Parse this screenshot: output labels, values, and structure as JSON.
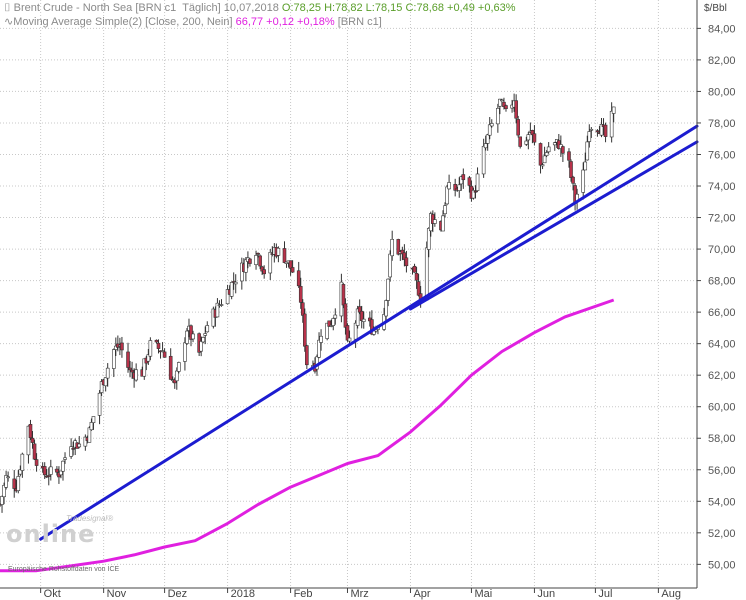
{
  "legend": {
    "line1_name": "Brent Crude - North Sea [BRN c1  Täglich]",
    "line1_date": "10,07,2018",
    "line1_ohl": "O:78,25 H:78,82 L:78,15",
    "line1_close": "C:78,68 +0,49 +0,63%",
    "line2_name": "Moving Average Simple(2) [Close, 200, Nein]",
    "line2_value": "66,77 +0,12 +0,18%",
    "line2_symbol": "[BRN c1]"
  },
  "watermark": {
    "brand": "online",
    "small": "Tradesignal®"
  },
  "source_note": "Europäische Rohstoffdaten von ICE",
  "colors": {
    "up": "#ffffff",
    "down": "#b8324a",
    "wick": "#333333",
    "trend": "#1c1cd0",
    "ma": "#e020e0",
    "grid": "#c8c8c8"
  },
  "chart_data": {
    "type": "candlestick",
    "y_unit": "$/Bbl",
    "ylim": [
      48.5,
      85.8
    ],
    "yticks": [
      50,
      52,
      54,
      56,
      58,
      60,
      62,
      64,
      66,
      68,
      70,
      72,
      74,
      76,
      78,
      80,
      82,
      84
    ],
    "ytick_labels": [
      "50,00",
      "52,00",
      "54,00",
      "56,00",
      "58,00",
      "60,00",
      "62,00",
      "64,00",
      "66,00",
      "68,00",
      "70,00",
      "72,00",
      "74,00",
      "76,00",
      "78,00",
      "80,00",
      "82,00",
      "84,00"
    ],
    "x_labels": [
      "Okt",
      "Nov",
      "Dez",
      "2018",
      "Feb",
      "Mrz",
      "Apr",
      "Mai",
      "Jun",
      "Jul",
      "Aug"
    ],
    "x_label_dates": [
      "2017-10-01",
      "2017-11-01",
      "2017-12-01",
      "2018-01-01",
      "2018-02-01",
      "2018-03-01",
      "2018-04-01",
      "2018-05-01",
      "2018-06-01",
      "2018-07-01",
      "2018-08-01"
    ],
    "x_range": [
      "2017-09-11",
      "2018-08-20"
    ],
    "grid": true,
    "price_anchors": [
      [
        "2017-09-11",
        53.8
      ],
      [
        "2017-09-14",
        55.5
      ],
      [
        "2017-09-19",
        55.0
      ],
      [
        "2017-09-25",
        58.9
      ],
      [
        "2017-09-28",
        57.0
      ],
      [
        "2017-10-02",
        55.7
      ],
      [
        "2017-10-05",
        55.8
      ],
      [
        "2017-10-10",
        55.8
      ],
      [
        "2017-10-16",
        57.8
      ],
      [
        "2017-10-20",
        57.6
      ],
      [
        "2017-10-25",
        58.4
      ],
      [
        "2017-10-31",
        61.4
      ],
      [
        "2017-11-06",
        63.6
      ],
      [
        "2017-11-09",
        63.9
      ],
      [
        "2017-11-14",
        62.2
      ],
      [
        "2017-11-20",
        62.2
      ],
      [
        "2017-11-24",
        63.9
      ],
      [
        "2017-11-30",
        63.6
      ],
      [
        "2017-12-06",
        61.3
      ],
      [
        "2017-12-12",
        65.0
      ],
      [
        "2017-12-18",
        63.4
      ],
      [
        "2017-12-22",
        65.2
      ],
      [
        "2017-12-28",
        66.5
      ],
      [
        "2018-01-04",
        68.0
      ],
      [
        "2018-01-10",
        69.2
      ],
      [
        "2018-01-15",
        70.0
      ],
      [
        "2018-01-19",
        68.6
      ],
      [
        "2018-01-24",
        70.0
      ],
      [
        "2018-01-29",
        69.5
      ],
      [
        "2018-02-02",
        68.6
      ],
      [
        "2018-02-06",
        66.8
      ],
      [
        "2018-02-09",
        62.8
      ],
      [
        "2018-02-13",
        62.7
      ],
      [
        "2018-02-16",
        64.8
      ],
      [
        "2018-02-21",
        65.4
      ],
      [
        "2018-02-26",
        67.5
      ],
      [
        "2018-03-01",
        63.8
      ],
      [
        "2018-03-06",
        65.8
      ],
      [
        "2018-03-09",
        65.5
      ],
      [
        "2018-03-14",
        64.9
      ],
      [
        "2018-03-19",
        66.0
      ],
      [
        "2018-03-23",
        70.5
      ],
      [
        "2018-03-28",
        69.5
      ],
      [
        "2018-04-03",
        68.1
      ],
      [
        "2018-04-06",
        67.1
      ],
      [
        "2018-04-11",
        72.1
      ],
      [
        "2018-04-16",
        71.4
      ],
      [
        "2018-04-19",
        73.8
      ],
      [
        "2018-04-24",
        73.8
      ],
      [
        "2018-04-27",
        74.6
      ],
      [
        "2018-05-02",
        73.4
      ],
      [
        "2018-05-07",
        76.2
      ],
      [
        "2018-05-10",
        77.5
      ],
      [
        "2018-05-15",
        79.3
      ],
      [
        "2018-05-18",
        78.5
      ],
      [
        "2018-05-22",
        79.6
      ],
      [
        "2018-05-25",
        76.4
      ],
      [
        "2018-05-30",
        77.5
      ],
      [
        "2018-06-04",
        75.3
      ],
      [
        "2018-06-08",
        76.5
      ],
      [
        "2018-06-13",
        76.7
      ],
      [
        "2018-06-18",
        75.3
      ],
      [
        "2018-06-21",
        73.1
      ],
      [
        "2018-06-25",
        74.7
      ],
      [
        "2018-06-28",
        77.9
      ],
      [
        "2018-07-03",
        77.8
      ],
      [
        "2018-07-06",
        77.1
      ],
      [
        "2018-07-10",
        78.7
      ]
    ],
    "ma200_points": [
      [
        "2017-09-11",
        49.6
      ],
      [
        "2017-09-29",
        49.6
      ],
      [
        "2017-10-16",
        49.9
      ],
      [
        "2017-11-01",
        50.2
      ],
      [
        "2017-11-16",
        50.6
      ],
      [
        "2017-12-01",
        51.1
      ],
      [
        "2017-12-16",
        51.5
      ],
      [
        "2018-01-01",
        52.6
      ],
      [
        "2018-01-16",
        53.8
      ],
      [
        "2018-02-01",
        54.9
      ],
      [
        "2018-02-16",
        55.7
      ],
      [
        "2018-03-01",
        56.4
      ],
      [
        "2018-03-16",
        56.9
      ],
      [
        "2018-04-01",
        58.4
      ],
      [
        "2018-04-16",
        60.1
      ],
      [
        "2018-05-01",
        62.0
      ],
      [
        "2018-05-16",
        63.5
      ],
      [
        "2018-06-01",
        64.7
      ],
      [
        "2018-06-16",
        65.7
      ],
      [
        "2018-07-10",
        66.77
      ]
    ],
    "trendlines": [
      {
        "from": [
          "2017-10-01",
          51.6
        ],
        "to": [
          "2018-08-20",
          77.8
        ]
      },
      {
        "from": [
          "2018-04-01",
          66.2
        ],
        "to": [
          "2018-08-20",
          76.8
        ]
      }
    ]
  }
}
